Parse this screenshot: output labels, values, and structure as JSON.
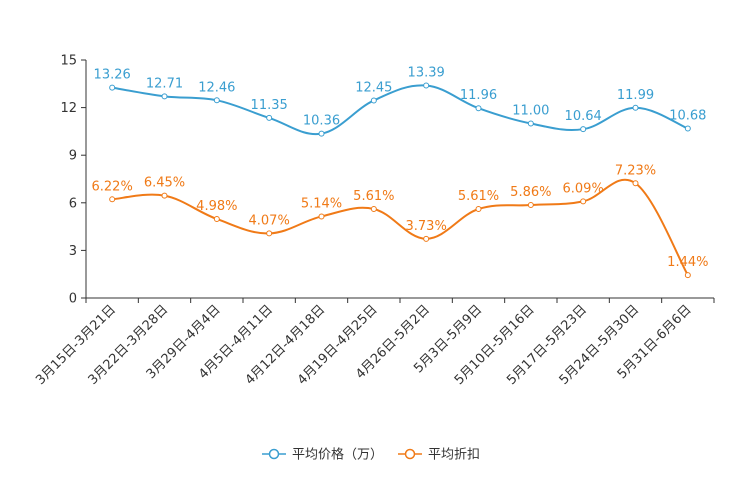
{
  "chart_data": {
    "type": "line",
    "categories": [
      "3月15日-3月21日",
      "3月22日-3月28日",
      "3月29日-4月4日",
      "4月5日-4月11日",
      "4月12日-4月18日",
      "4月19日-4月25日",
      "4月26日-5月2日",
      "5月3日-5月9日",
      "5月10日-5月16日",
      "5月17日-5月23日",
      "5月24日-5月30日",
      "5月31日-6月6日"
    ],
    "ylim": [
      0,
      15
    ],
    "yticks": [
      0,
      3,
      6,
      9,
      12,
      15
    ],
    "series": [
      {
        "name": "平均价格（万）",
        "color": "#3a9ed0",
        "values": [
          13.26,
          12.71,
          12.46,
          11.35,
          10.36,
          12.45,
          13.39,
          11.96,
          11.0,
          10.64,
          11.99,
          10.68
        ],
        "labels": [
          "13.26",
          "12.71",
          "12.46",
          "11.35",
          "10.36",
          "12.45",
          "13.39",
          "11.96",
          "11.00",
          "10.64",
          "11.99",
          "10.68"
        ]
      },
      {
        "name": "平均折扣",
        "color": "#f07a17",
        "values": [
          6.22,
          6.45,
          4.98,
          4.07,
          5.14,
          5.61,
          3.73,
          5.61,
          5.86,
          6.09,
          7.23,
          1.44
        ],
        "labels": [
          "6.22%",
          "6.45%",
          "4.98%",
          "4.07%",
          "5.14%",
          "5.61%",
          "3.73%",
          "5.61%",
          "5.86%",
          "6.09%",
          "7.23%",
          "1.44%"
        ]
      }
    ]
  }
}
